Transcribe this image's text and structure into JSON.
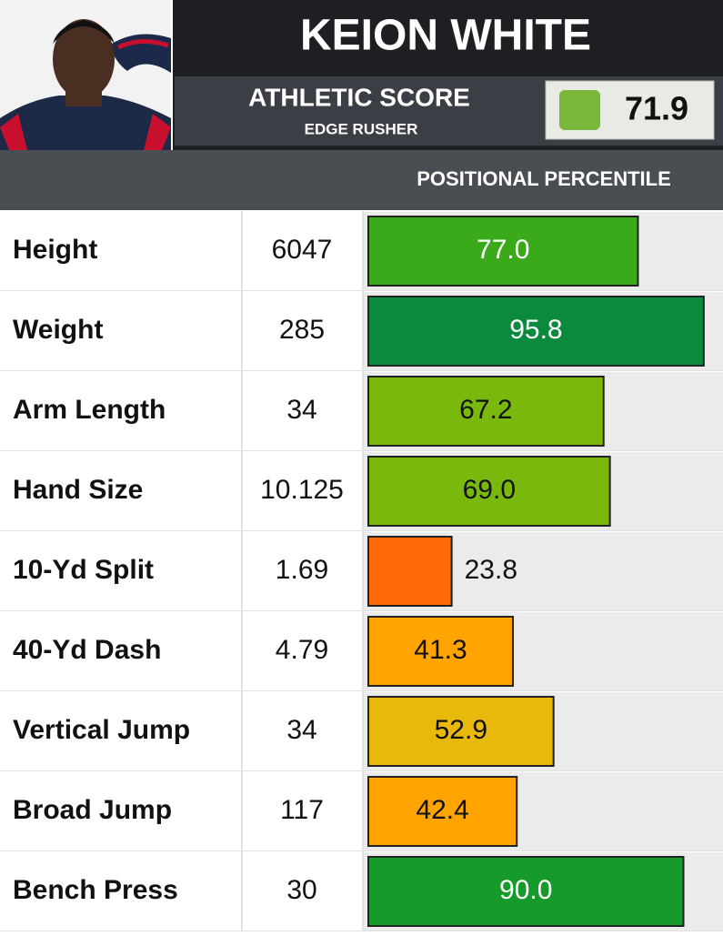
{
  "header": {
    "name": "KEION WHITE",
    "score_label": "ATHLETIC SCORE",
    "position": "EDGE RUSHER",
    "score": 71.9,
    "score_color": "#7ab83c"
  },
  "table": {
    "percentile_header": "POSITIONAL PERCENTILE",
    "rows": [
      {
        "label": "Height",
        "value": 6047,
        "percentile": 77,
        "percentile_label": "77.0",
        "color": "#3aaa1a"
      },
      {
        "label": "Weight",
        "value": 285,
        "percentile": 95.8,
        "color": "#0b8a3d"
      },
      {
        "label": "Arm Length",
        "value": 34,
        "percentile": 67.2,
        "color": "#7ab80e"
      },
      {
        "label": "Hand Size",
        "value": 10.125,
        "percentile": 69,
        "percentile_label": "69.0",
        "color": "#7ab80e"
      },
      {
        "label": "10-Yd Split",
        "value": 1.69,
        "percentile": 23.8,
        "color": "#ff6a0a"
      },
      {
        "label": "40-Yd Dash",
        "value": 4.79,
        "percentile": 41.3,
        "color": "#ffa400"
      },
      {
        "label": "Vertical Jump",
        "value": 34,
        "percentile": 52.9,
        "color": "#e8b90a"
      },
      {
        "label": "Broad Jump",
        "value": 117,
        "percentile": 42.4,
        "color": "#ffa400"
      },
      {
        "label": "Bench Press",
        "value": 30,
        "percentile": 90,
        "percentile_label": "90.0",
        "color": "#169a2a"
      }
    ]
  }
}
